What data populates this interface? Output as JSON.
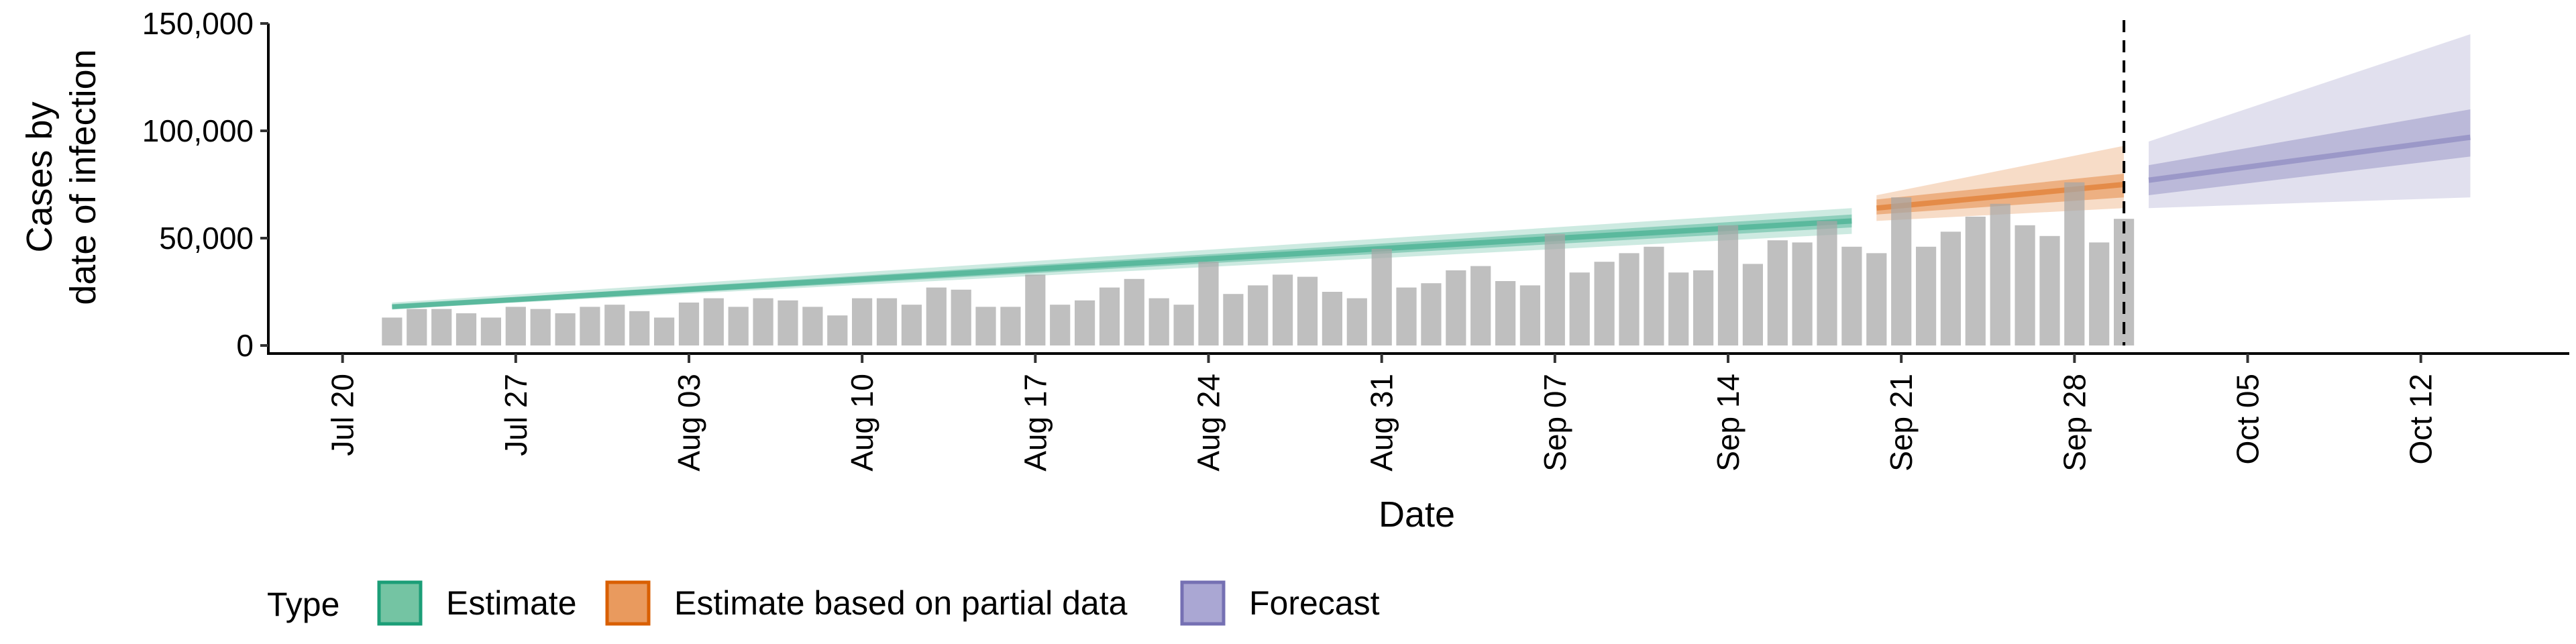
{
  "chart_data": {
    "type": "bar",
    "xlabel": "Date",
    "ylabel_lines": [
      "Cases by",
      "date of infection"
    ],
    "ylim": [
      0,
      150000
    ],
    "y_ticks": [
      0,
      50000,
      100000,
      150000
    ],
    "y_tick_labels": [
      "0",
      "50,000",
      "100,000",
      "150,000"
    ],
    "x_ticks": [
      "Jul 20",
      "Jul 27",
      "Aug 03",
      "Aug 10",
      "Aug 17",
      "Aug 24",
      "Aug 31",
      "Sep 07",
      "Sep 14",
      "Sep 21",
      "Sep 28",
      "Oct 05",
      "Oct 12"
    ],
    "x_tick_dates": [
      "2020-07-20",
      "2020-07-27",
      "2020-08-03",
      "2020-08-10",
      "2020-08-17",
      "2020-08-24",
      "2020-08-31",
      "2020-09-07",
      "2020-09-14",
      "2020-09-21",
      "2020-09-28",
      "2020-10-05",
      "2020-10-12"
    ],
    "xlim": [
      "2020-07-17",
      "2020-10-18"
    ],
    "bars_start_date": "2020-07-22",
    "bars": [
      13000,
      17000,
      17000,
      15000,
      13000,
      18000,
      17000,
      15000,
      18000,
      19000,
      16000,
      13000,
      20000,
      22000,
      18000,
      22000,
      21000,
      18000,
      14000,
      22000,
      22000,
      19000,
      27000,
      26000,
      18000,
      18000,
      33000,
      19000,
      21000,
      27000,
      31000,
      22000,
      19000,
      39000,
      24000,
      28000,
      33000,
      32000,
      25000,
      22000,
      45000,
      27000,
      29000,
      35000,
      37000,
      30000,
      28000,
      52000,
      34000,
      39000,
      43000,
      46000,
      34000,
      35000,
      56000,
      38000,
      49000,
      48000,
      58000,
      46000,
      43000,
      69000,
      46000,
      53000,
      60000,
      66000,
      56000,
      51000,
      76000,
      48000,
      59000
    ],
    "divider_date": "2020-09-30",
    "series": [
      {
        "name": "Estimate",
        "color": "#1b9e77",
        "start_date": "2020-07-22",
        "end_date": "2020-09-19",
        "median": [
          18000,
          58000
        ],
        "inner": [
          [
            17000,
            19000
          ],
          [
            55000,
            61000
          ]
        ],
        "outer": [
          [
            17000,
            20000
          ],
          [
            52000,
            64000
          ]
        ]
      },
      {
        "name": "Estimate based on partial data",
        "color": "#d95f02",
        "start_date": "2020-09-20",
        "end_date": "2020-09-30",
        "median": [
          64000,
          75000
        ],
        "inner": [
          [
            61000,
            68000
          ],
          [
            69000,
            80000
          ]
        ],
        "outer": [
          [
            58000,
            70000
          ],
          [
            64000,
            93000
          ]
        ]
      },
      {
        "name": "Forecast",
        "color": "#7570b3",
        "start_date": "2020-10-01",
        "end_date": "2020-10-14",
        "median": [
          77000,
          97000
        ],
        "inner": [
          [
            70000,
            84000
          ],
          [
            88000,
            110000
          ]
        ],
        "outer": [
          [
            64000,
            95000
          ],
          [
            69000,
            145000
          ]
        ]
      }
    ],
    "legend": {
      "title": "Type",
      "position": "bottom",
      "items": [
        {
          "label": "Estimate",
          "fill": "#74c4a3",
          "border": "#1b9e77"
        },
        {
          "label": "Estimate based on partial data",
          "fill": "#e99a5e",
          "border": "#d95f02"
        },
        {
          "label": "Forecast",
          "fill": "#aaa7d3",
          "border": "#7570b3"
        }
      ]
    },
    "grid": false
  }
}
